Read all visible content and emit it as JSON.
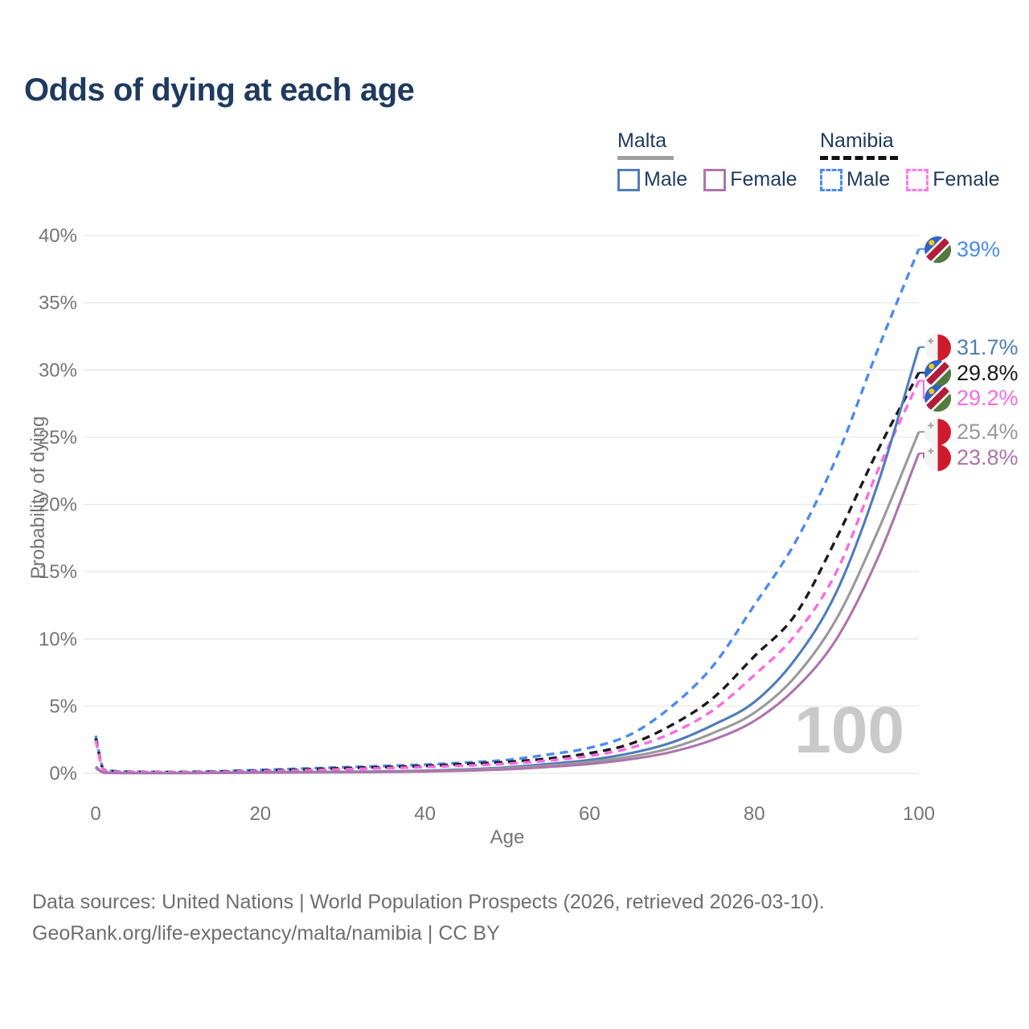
{
  "title": "Odds of dying at each age",
  "colors": {
    "title_text": "#1e3a5f",
    "legend_text": "#1e3a5f",
    "axis_text": "#757575",
    "grid": "#e8e8e8",
    "watermark": "#c9c9c9",
    "footer_text": "#6e6e6e"
  },
  "legend": {
    "groups": [
      {
        "label": "Malta",
        "line_style": "solid",
        "underline_color": "#9e9e9e",
        "items": [
          {
            "label": "Male",
            "color": "#4f7db8"
          },
          {
            "label": "Female",
            "color": "#ad74ad"
          }
        ]
      },
      {
        "label": "Namibia",
        "line_style": "dashed",
        "underline_color": "#111111",
        "items": [
          {
            "label": "Male",
            "color": "#4d8af0"
          },
          {
            "label": "Female",
            "color": "#fb7ce8"
          }
        ]
      }
    ]
  },
  "chart_data": {
    "type": "line",
    "title": "Odds of dying at each age",
    "xlabel": "Age",
    "ylabel": "Probability of dying",
    "xlim": [
      0,
      100
    ],
    "ylim": [
      0,
      40
    ],
    "xticks": [
      0,
      20,
      40,
      60,
      80,
      100
    ],
    "yticks": [
      0,
      5,
      10,
      15,
      20,
      25,
      30,
      35,
      40
    ],
    "ytick_suffix": "%",
    "grid": "horizontal",
    "legend_position": "top-right",
    "x": [
      0,
      1,
      2,
      5,
      10,
      15,
      20,
      25,
      30,
      35,
      40,
      45,
      50,
      55,
      60,
      65,
      70,
      75,
      80,
      85,
      90,
      95,
      100
    ],
    "series": [
      {
        "name": "Namibia Male",
        "country": "Namibia",
        "sex": "Male",
        "style": "dashed",
        "flag": "namibia",
        "color": "#4d8af0",
        "values": [
          2.8,
          0.28,
          0.18,
          0.12,
          0.1,
          0.16,
          0.25,
          0.35,
          0.45,
          0.55,
          0.65,
          0.8,
          1.0,
          1.4,
          1.9,
          2.9,
          5.0,
          8.0,
          12.5,
          17.2,
          23.5,
          31.5,
          39.0
        ],
        "end_label": "39%"
      },
      {
        "name": "Namibia Both sexes",
        "country": "Namibia",
        "sex": "Both",
        "style": "dashed",
        "flag": "namibia",
        "color": "#1a1a1a",
        "values": [
          2.6,
          0.25,
          0.16,
          0.1,
          0.09,
          0.13,
          0.2,
          0.28,
          0.38,
          0.46,
          0.55,
          0.7,
          0.85,
          1.1,
          1.5,
          2.2,
          3.6,
          5.6,
          8.7,
          11.8,
          17.5,
          24.0,
          29.8
        ],
        "end_label": "29.8%"
      },
      {
        "name": "Namibia Female",
        "country": "Namibia",
        "sex": "Female",
        "style": "dashed",
        "flag": "namibia",
        "color": "#fb6ae2",
        "values": [
          2.45,
          0.22,
          0.14,
          0.09,
          0.08,
          0.11,
          0.16,
          0.22,
          0.3,
          0.38,
          0.47,
          0.58,
          0.72,
          0.95,
          1.3,
          1.9,
          3.0,
          4.7,
          7.3,
          10.3,
          15.0,
          22.5,
          29.2
        ],
        "end_label": "29.2%"
      },
      {
        "name": "Malta Male",
        "country": "Malta",
        "sex": "Male",
        "style": "solid",
        "flag": "malta",
        "color": "#4f7db8",
        "values": [
          0.5,
          0.06,
          0.04,
          0.03,
          0.03,
          0.05,
          0.08,
          0.1,
          0.12,
          0.15,
          0.2,
          0.3,
          0.45,
          0.7,
          1.0,
          1.5,
          2.3,
          3.6,
          5.3,
          8.5,
          13.5,
          21.5,
          31.7
        ],
        "end_label": "31.7%"
      },
      {
        "name": "Malta Both sexes",
        "country": "Malta",
        "sex": "Both",
        "style": "solid",
        "flag": "malta",
        "color": "#999999",
        "values": [
          0.45,
          0.05,
          0.035,
          0.025,
          0.025,
          0.04,
          0.06,
          0.08,
          0.1,
          0.12,
          0.17,
          0.25,
          0.38,
          0.58,
          0.85,
          1.25,
          1.9,
          3.0,
          4.5,
          7.2,
          11.5,
          18.0,
          25.4
        ],
        "end_label": "25.4%"
      },
      {
        "name": "Malta Female",
        "country": "Malta",
        "sex": "Female",
        "style": "solid",
        "flag": "malta",
        "color": "#ad74ad",
        "values": [
          0.4,
          0.045,
          0.03,
          0.02,
          0.02,
          0.03,
          0.05,
          0.06,
          0.08,
          0.1,
          0.14,
          0.2,
          0.3,
          0.48,
          0.7,
          1.05,
          1.6,
          2.5,
          3.9,
          6.3,
          10.0,
          16.0,
          23.8
        ],
        "end_label": "23.8%"
      }
    ]
  },
  "watermark": "100",
  "footer": {
    "line1": "Data sources: United Nations | World Population Prospects (2026, retrieved 2026-03-10).",
    "line2": "GeoRank.org/life-expectancy/malta/namibia | CC BY"
  }
}
